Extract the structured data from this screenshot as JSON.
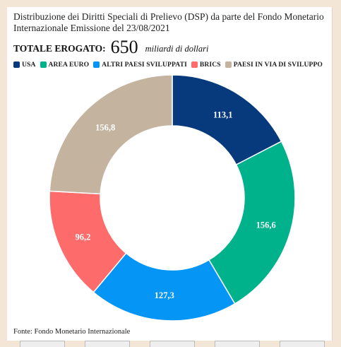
{
  "title": "Distribuzione dei Diritti Speciali di Prelievo (DSP) da parte del Fondo Monetario Internazionale Emissione del 23/08/2021",
  "total": {
    "label": "TOTALE EROGATO:",
    "value": "650",
    "unit": "miliardi di dollari"
  },
  "source": "Fonte: Fondo Monetario Internazionale",
  "chart_data": {
    "type": "pie",
    "donut": true,
    "legend_position": "top",
    "categories": [
      "USA",
      "AREA EURO",
      "ALTRI PAESI SVILUPPATI",
      "BRICS",
      "PAESI IN VIA DI SVILUPPO"
    ],
    "values": [
      113.1,
      156.6,
      127.3,
      96.2,
      156.8
    ],
    "value_labels": [
      "113,1",
      "156,6",
      "127,3",
      "96,2",
      "156,8"
    ],
    "colors": [
      "#063a7c",
      "#00b28c",
      "#0596f5",
      "#fd6b6b",
      "#c4b49f"
    ]
  }
}
